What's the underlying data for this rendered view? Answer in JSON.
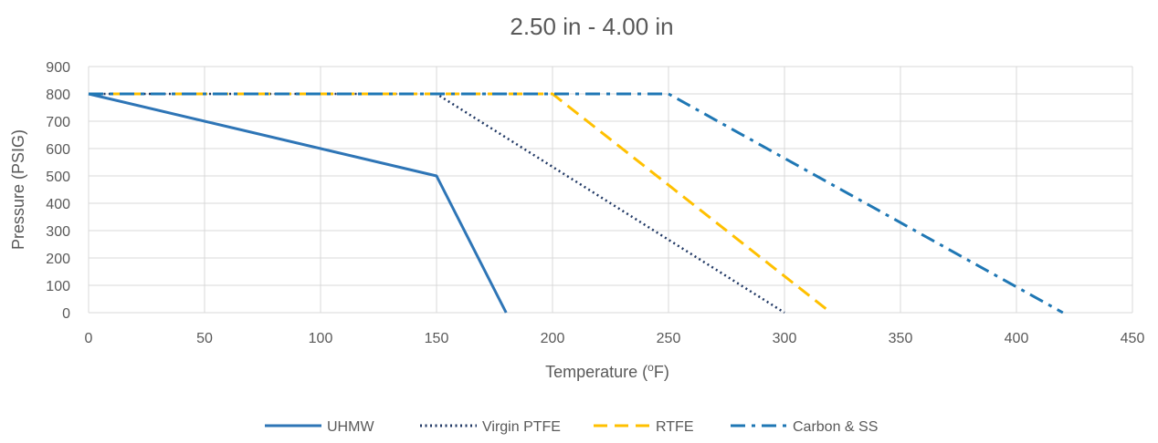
{
  "chart_data": {
    "type": "line",
    "title": "2.50 in - 4.00 in",
    "xlabel_main": "Temperature (",
    "xlabel_sup": "o",
    "xlabel_end": "F)",
    "ylabel": "Pressure (PSIG)",
    "xlim": [
      0,
      450
    ],
    "ylim": [
      0,
      900
    ],
    "xticks": [
      0,
      50,
      100,
      150,
      200,
      250,
      300,
      350,
      400,
      450
    ],
    "yticks": [
      0,
      100,
      200,
      300,
      400,
      500,
      600,
      700,
      800,
      900
    ],
    "grid": true,
    "legend_position": "bottom",
    "series": [
      {
        "name": "UHMW",
        "color": "#2E75B6",
        "style": "solid",
        "points": [
          [
            0,
            800
          ],
          [
            150,
            500
          ],
          [
            180,
            0
          ]
        ]
      },
      {
        "name": "Virgin PTFE",
        "color": "#203864",
        "style": "dotted",
        "points": [
          [
            0,
            800
          ],
          [
            150,
            800
          ],
          [
            300,
            0
          ]
        ]
      },
      {
        "name": "RTFE",
        "color": "#FFC000",
        "style": "dashed",
        "points": [
          [
            0,
            800
          ],
          [
            200,
            800
          ],
          [
            320,
            0
          ]
        ]
      },
      {
        "name": "Carbon & SS",
        "color": "#1F77B4",
        "style": "dashdot",
        "points": [
          [
            0,
            800
          ],
          [
            250,
            800
          ],
          [
            420,
            0
          ]
        ]
      }
    ]
  }
}
